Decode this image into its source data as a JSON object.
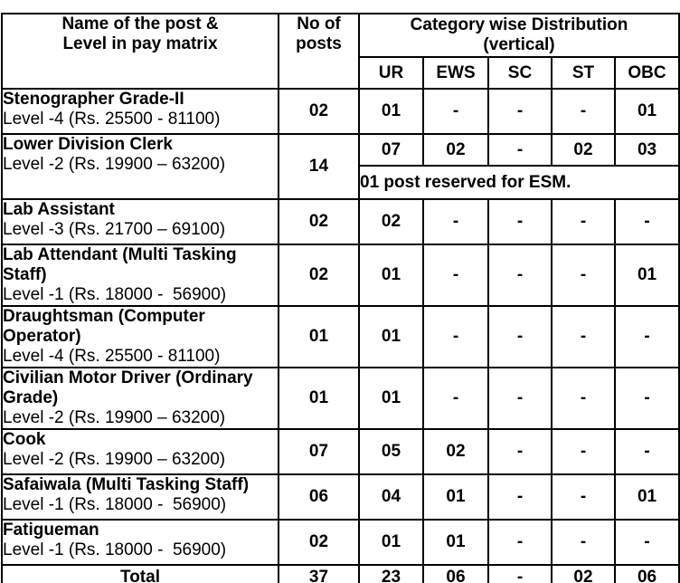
{
  "colors": {
    "border": "#000000",
    "text": "#000000",
    "background": "#ffffff"
  },
  "table": {
    "header": {
      "name_col": "Name of the post &\nLevel in pay matrix",
      "posts_col": "No of\nposts",
      "category_col": "Category wise Distribution\n(vertical)",
      "subcols": [
        "UR",
        "EWS",
        "SC",
        "ST",
        "OBC"
      ]
    },
    "rows": [
      {
        "title": "Stenographer Grade-II",
        "level": "Level -4 (Rs. 25500 - 81100)",
        "posts": "02",
        "values": [
          "01",
          "-",
          "-",
          "-",
          "01"
        ]
      },
      {
        "title": "Lower Division Clerk",
        "level": "Level -2 (Rs. 19900 – 63200)",
        "posts": "14",
        "values": [
          "07",
          "02",
          "-",
          "02",
          "03"
        ],
        "note": "01 post reserved for ESM."
      },
      {
        "title": "Lab Assistant",
        "level": "Level -3 (Rs. 21700 – 69100)",
        "posts": "02",
        "values": [
          "02",
          "-",
          "-",
          "-",
          "-"
        ]
      },
      {
        "title": "Lab Attendant (Multi Tasking\nStaff)",
        "level": "Level -1 (Rs. 18000 -  56900)",
        "posts": "02",
        "values": [
          "01",
          "-",
          "-",
          "-",
          "01"
        ]
      },
      {
        "title": "Draughtsman (Computer\nOperator)",
        "level": "Level -4 (Rs. 25500 - 81100)",
        "posts": "01",
        "values": [
          "01",
          "-",
          "-",
          "-",
          "-"
        ]
      },
      {
        "title": "Civilian Motor Driver (Ordinary\nGrade)",
        "level": "Level -2 (Rs. 19900 – 63200)",
        "posts": "01",
        "values": [
          "01",
          "-",
          "-",
          "-",
          "-"
        ]
      },
      {
        "title": "Cook",
        "level": "Level -2 (Rs. 19900 – 63200)",
        "posts": "07",
        "values": [
          "05",
          "02",
          "-",
          "-",
          "-"
        ]
      },
      {
        "title": "Safaiwala (Multi Tasking Staff)",
        "level": "Level -1 (Rs. 18000 -  56900)",
        "posts": "06",
        "values": [
          "04",
          "01",
          "-",
          "-",
          "01"
        ]
      },
      {
        "title": "Fatigueman",
        "level": "Level -1 (Rs. 18000 -  56900)",
        "posts": "02",
        "values": [
          "01",
          "01",
          "-",
          "-",
          "-"
        ]
      }
    ],
    "total": {
      "label": "Total",
      "posts": "37",
      "values": [
        "23",
        "06",
        "-",
        "02",
        "06"
      ]
    }
  }
}
